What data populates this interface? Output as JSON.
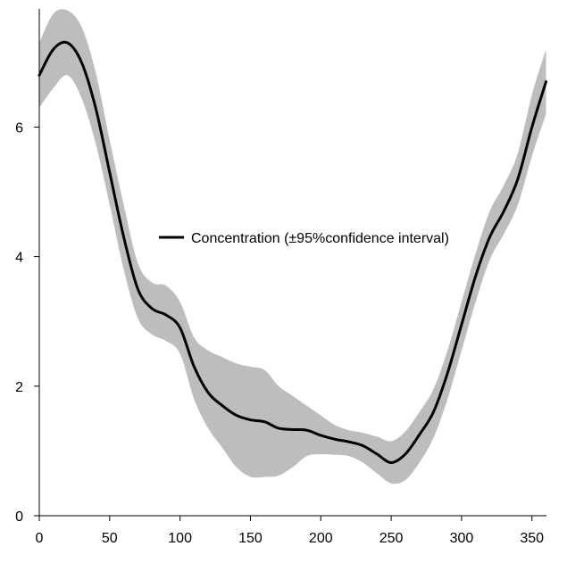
{
  "chart_data": {
    "type": "line",
    "title": "",
    "xlabel": "",
    "ylabel": "",
    "xlim": [
      0,
      360
    ],
    "ylim": [
      0,
      7.8
    ],
    "xticks": [
      0,
      50,
      100,
      150,
      200,
      250,
      300,
      350
    ],
    "yticks": [
      0,
      2,
      4,
      6
    ],
    "grid": false,
    "legend": {
      "position": "center",
      "entries": [
        "Concentration (±95%confidence interval)"
      ]
    },
    "colors": {
      "line": "#000000",
      "band": "#bdbdbd"
    },
    "series": [
      {
        "name": "Concentration (±95%confidence interval)",
        "x": [
          0,
          10,
          20,
          30,
          40,
          50,
          60,
          70,
          80,
          90,
          100,
          110,
          120,
          130,
          140,
          150,
          160,
          170,
          180,
          190,
          200,
          210,
          220,
          230,
          240,
          250,
          260,
          270,
          280,
          290,
          300,
          310,
          320,
          330,
          340,
          350,
          360
        ],
        "y": [
          6.8,
          7.2,
          7.3,
          7.0,
          6.3,
          5.3,
          4.3,
          3.5,
          3.2,
          3.1,
          2.9,
          2.3,
          1.9,
          1.7,
          1.55,
          1.48,
          1.45,
          1.35,
          1.33,
          1.32,
          1.24,
          1.18,
          1.14,
          1.08,
          0.95,
          0.82,
          0.95,
          1.25,
          1.6,
          2.2,
          2.95,
          3.7,
          4.3,
          4.7,
          5.2,
          6.0,
          6.7
        ],
        "lower": [
          6.3,
          6.6,
          6.8,
          6.45,
          5.75,
          4.8,
          3.8,
          3.05,
          2.8,
          2.7,
          2.5,
          1.8,
          1.35,
          1.05,
          0.75,
          0.6,
          0.6,
          0.62,
          0.75,
          0.92,
          0.95,
          0.94,
          0.92,
          0.82,
          0.65,
          0.5,
          0.55,
          0.82,
          1.2,
          1.8,
          2.55,
          3.3,
          3.95,
          4.35,
          4.8,
          5.55,
          6.2
        ],
        "upper": [
          7.3,
          7.75,
          7.8,
          7.55,
          6.85,
          5.8,
          4.8,
          3.9,
          3.6,
          3.55,
          3.3,
          2.75,
          2.55,
          2.45,
          2.35,
          2.3,
          2.25,
          2.0,
          1.85,
          1.7,
          1.55,
          1.4,
          1.32,
          1.28,
          1.22,
          1.15,
          1.3,
          1.6,
          1.95,
          2.55,
          3.3,
          4.05,
          4.7,
          5.1,
          5.6,
          6.5,
          7.2
        ]
      }
    ]
  }
}
